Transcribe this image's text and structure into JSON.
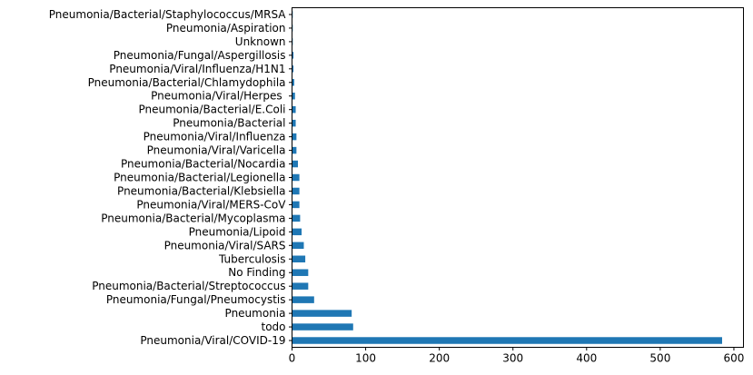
{
  "chart_data": {
    "type": "bar",
    "orientation": "horizontal",
    "title": "",
    "xlabel": "",
    "ylabel": "",
    "categories": [
      "Pneumonia/Viral/COVID-19",
      "todo",
      "Pneumonia",
      "Pneumonia/Fungal/Pneumocystis",
      "Pneumonia/Bacterial/Streptococcus",
      "No Finding",
      "Tuberculosis",
      "Pneumonia/Viral/SARS",
      "Pneumonia/Lipoid",
      "Pneumonia/Bacterial/Mycoplasma",
      "Pneumonia/Viral/MERS-CoV",
      "Pneumonia/Bacterial/Klebsiella",
      "Pneumonia/Bacterial/Legionella",
      "Pneumonia/Bacterial/Nocardia",
      "Pneumonia/Viral/Varicella",
      "Pneumonia/Viral/Influenza",
      "Pneumonia/Bacterial",
      "Pneumonia/Bacterial/E.Coli",
      "Pneumonia/Viral/Herpes ",
      "Pneumonia/Bacterial/Chlamydophila",
      "Pneumonia/Viral/Influenza/H1N1",
      "Pneumonia/Fungal/Aspergillosis",
      "Unknown",
      "Pneumonia/Aspiration",
      "Pneumonia/Bacterial/Staphylococcus/MRSA"
    ],
    "values": [
      584,
      83,
      81,
      30,
      22,
      22,
      18,
      16,
      13,
      11,
      10,
      10,
      10,
      8,
      6,
      6,
      5,
      5,
      4,
      3,
      2,
      2,
      1,
      1,
      1
    ],
    "xlim": [
      0,
      613
    ],
    "xticks": [
      0,
      100,
      200,
      300,
      400,
      500,
      600
    ],
    "bar_color": "#1f77b4",
    "grid": false,
    "legend": "none"
  }
}
